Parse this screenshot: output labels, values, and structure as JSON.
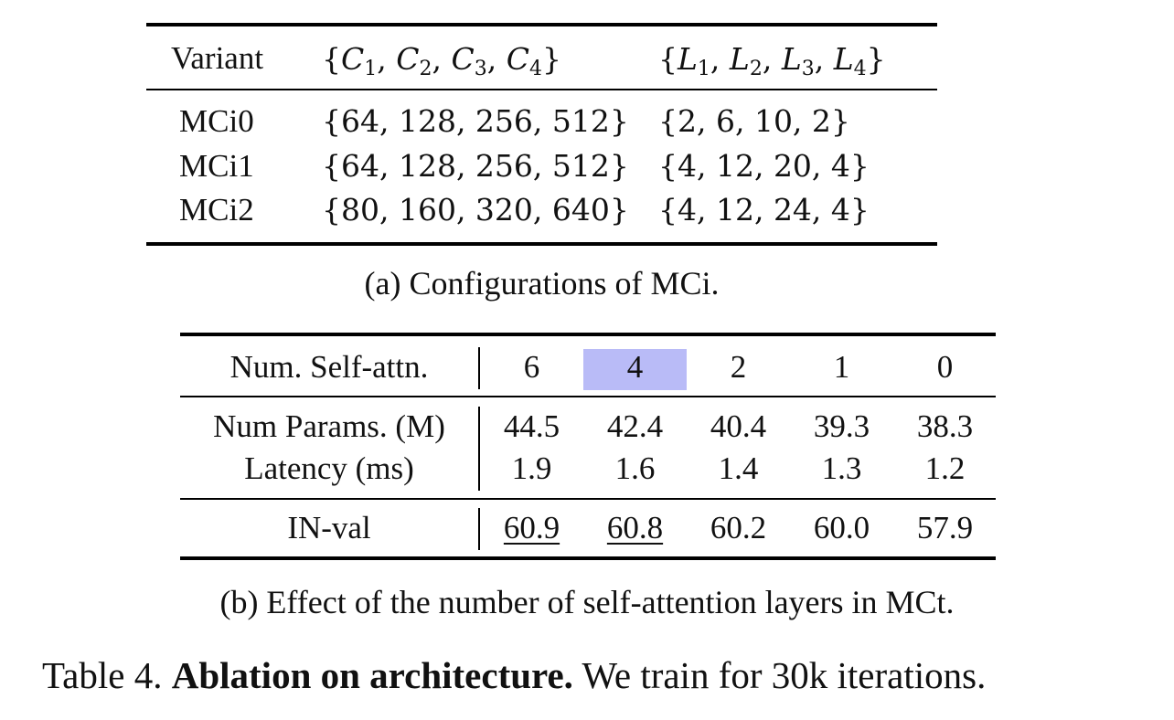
{
  "table_a": {
    "headers": {
      "variant": "Variant",
      "channels": [
        "C",
        "1",
        ", ",
        "C",
        "2",
        ", ",
        "C",
        "3",
        ", ",
        "C",
        "4"
      ],
      "layers": [
        "L",
        "1",
        ", ",
        "L",
        "2",
        ", ",
        "L",
        "3",
        ", ",
        "L",
        "4"
      ]
    },
    "rows": [
      {
        "variant": "MCi0",
        "channels": "{64, 128, 256, 512}",
        "layers": "{2, 6, 10, 2}"
      },
      {
        "variant": "MCi1",
        "channels": "{64, 128, 256, 512}",
        "layers": "{4, 12, 20, 4}"
      },
      {
        "variant": "MCi2",
        "channels": "{80, 160, 320, 640}",
        "layers": "{4, 12, 24, 4}"
      }
    ],
    "caption": "(a) Configurations of MCi."
  },
  "table_b": {
    "header_label": "Num. Self-attn.",
    "columns": [
      "6",
      "4",
      "2",
      "1",
      "0"
    ],
    "highlight_color": "#b9bbf7",
    "rows": [
      {
        "label": "Num Params. (M)",
        "values": [
          "44.5",
          "42.4",
          "40.4",
          "39.3",
          "38.3"
        ]
      },
      {
        "label": "Latency (ms)",
        "values": [
          "1.9",
          "1.6",
          "1.4",
          "1.3",
          "1.2"
        ]
      },
      {
        "label": "IN-val",
        "values": [
          "60.9",
          "60.8",
          "60.2",
          "60.0",
          "57.9"
        ]
      }
    ],
    "caption": "(b) Effect of the number of self-attention layers in MCt."
  },
  "main_caption": {
    "prefix": "Table 4.",
    "bold": "Ablation on architecture.",
    "rest": "We train for 30k iterations."
  }
}
